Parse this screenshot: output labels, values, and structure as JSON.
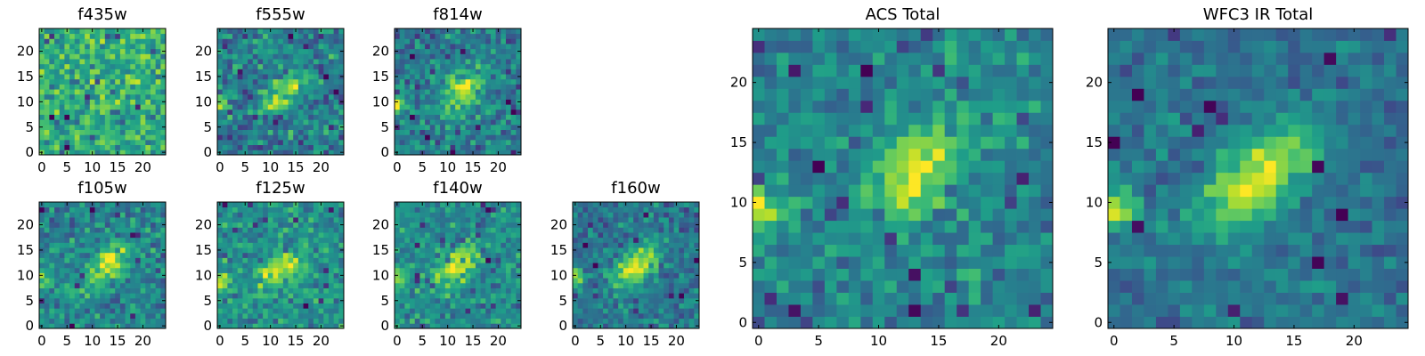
{
  "chart_data": [
    {
      "type": "heatmap",
      "title": "f435w",
      "colormap": "viridis",
      "grid": [
        25,
        25
      ],
      "xlim": [
        -0.5,
        24.5
      ],
      "ylim": [
        -0.5,
        24.5
      ],
      "xticks": [
        "0",
        "5",
        "10",
        "15",
        "20"
      ],
      "yticks": [
        "0",
        "5",
        "10",
        "15",
        "20"
      ],
      "background": 0.62,
      "noise": 0.16,
      "blob": {
        "center": [
          14,
          12
        ],
        "amp": 0.1
      },
      "edge_source": {
        "center": [
          0,
          9.5
        ],
        "amp": 0.2
      },
      "seed": 11
    },
    {
      "type": "heatmap",
      "title": "f555w",
      "colormap": "viridis",
      "grid": [
        25,
        25
      ],
      "xlim": [
        -0.5,
        24.5
      ],
      "ylim": [
        -0.5,
        24.5
      ],
      "xticks": [
        "0",
        "5",
        "10",
        "15",
        "20"
      ],
      "yticks": [
        "0",
        "5",
        "10",
        "15",
        "20"
      ],
      "background": 0.42,
      "noise": 0.15,
      "blob": {
        "center": [
          13,
          12
        ],
        "amp": 0.45
      },
      "edge_source": {
        "center": [
          0,
          9.5
        ],
        "amp": 0.45
      },
      "seed": 22
    },
    {
      "type": "heatmap",
      "title": "f814w",
      "colormap": "viridis",
      "grid": [
        25,
        25
      ],
      "xlim": [
        -0.5,
        24.5
      ],
      "ylim": [
        -0.5,
        24.5
      ],
      "xticks": [
        "0",
        "5",
        "10",
        "15",
        "20"
      ],
      "yticks": [
        "0",
        "5",
        "10",
        "15",
        "20"
      ],
      "background": 0.42,
      "noise": 0.14,
      "blob": {
        "center": [
          13,
          12.5
        ],
        "amp": 0.5
      },
      "edge_source": {
        "center": [
          0,
          9.5
        ],
        "amp": 0.5
      },
      "seed": 33
    },
    {
      "type": "heatmap",
      "title": "f105w",
      "colormap": "viridis",
      "grid": [
        25,
        25
      ],
      "xlim": [
        -0.5,
        24.5
      ],
      "ylim": [
        -0.5,
        24.5
      ],
      "xticks": [
        "0",
        "5",
        "10",
        "15",
        "20"
      ],
      "yticks": [
        "0",
        "5",
        "10",
        "15",
        "20"
      ],
      "background": 0.45,
      "noise": 0.13,
      "blob": {
        "center": [
          13,
          12
        ],
        "amp": 0.45
      },
      "edge_source": {
        "center": [
          0,
          9
        ],
        "amp": 0.45
      },
      "seed": 44
    },
    {
      "type": "heatmap",
      "title": "f125w",
      "colormap": "viridis",
      "grid": [
        25,
        25
      ],
      "xlim": [
        -0.5,
        24.5
      ],
      "ylim": [
        -0.5,
        24.5
      ],
      "xticks": [
        "0",
        "5",
        "10",
        "15",
        "20"
      ],
      "yticks": [
        "0",
        "5",
        "10",
        "15",
        "20"
      ],
      "background": 0.5,
      "noise": 0.13,
      "blob": {
        "center": [
          12,
          11
        ],
        "amp": 0.4
      },
      "edge_source": {
        "center": [
          0,
          8.5
        ],
        "amp": 0.45
      },
      "seed": 55
    },
    {
      "type": "heatmap",
      "title": "f140w",
      "colormap": "viridis",
      "grid": [
        25,
        25
      ],
      "xlim": [
        -0.5,
        24.5
      ],
      "ylim": [
        -0.5,
        24.5
      ],
      "xticks": [
        "0",
        "5",
        "10",
        "15",
        "20"
      ],
      "yticks": [
        "0",
        "5",
        "10",
        "15",
        "20"
      ],
      "background": 0.48,
      "noise": 0.12,
      "blob": {
        "center": [
          12,
          12
        ],
        "amp": 0.45
      },
      "edge_source": {
        "center": [
          0,
          9.5
        ],
        "amp": 0.4
      },
      "seed": 66
    },
    {
      "type": "heatmap",
      "title": "f160w",
      "colormap": "viridis",
      "grid": [
        25,
        25
      ],
      "xlim": [
        -0.5,
        24.5
      ],
      "ylim": [
        -0.5,
        24.5
      ],
      "xticks": [
        "0",
        "5",
        "10",
        "15",
        "20"
      ],
      "yticks": [
        "0",
        "5",
        "10",
        "15",
        "20"
      ],
      "background": 0.4,
      "noise": 0.12,
      "blob": {
        "center": [
          12,
          12
        ],
        "amp": 0.55
      },
      "edge_source": {
        "center": [
          0,
          9.5
        ],
        "amp": 0.5
      },
      "seed": 77
    },
    {
      "type": "heatmap",
      "title": "ACS Total",
      "colormap": "viridis",
      "grid": [
        25,
        25
      ],
      "xlim": [
        -0.5,
        24.5
      ],
      "ylim": [
        -0.5,
        24.5
      ],
      "xticks": [
        "0",
        "5",
        "10",
        "15",
        "20"
      ],
      "yticks": [
        "0",
        "5",
        "10",
        "15",
        "20"
      ],
      "background": 0.45,
      "noise": 0.12,
      "blob": {
        "center": [
          13,
          12.5
        ],
        "amp": 0.5
      },
      "edge_source": {
        "center": [
          0,
          9.5
        ],
        "amp": 0.5
      },
      "seed": 88
    },
    {
      "type": "heatmap",
      "title": "WFC3 IR Total",
      "colormap": "viridis",
      "grid": [
        25,
        25
      ],
      "xlim": [
        -0.5,
        24.5
      ],
      "ylim": [
        -0.5,
        24.5
      ],
      "xticks": [
        "0",
        "5",
        "10",
        "15",
        "20"
      ],
      "yticks": [
        "0",
        "5",
        "10",
        "15",
        "20"
      ],
      "background": 0.38,
      "noise": 0.09,
      "blob": {
        "center": [
          12,
          12
        ],
        "amp": 0.6
      },
      "edge_source": {
        "center": [
          0,
          9.5
        ],
        "amp": 0.55
      },
      "seed": 99
    }
  ]
}
